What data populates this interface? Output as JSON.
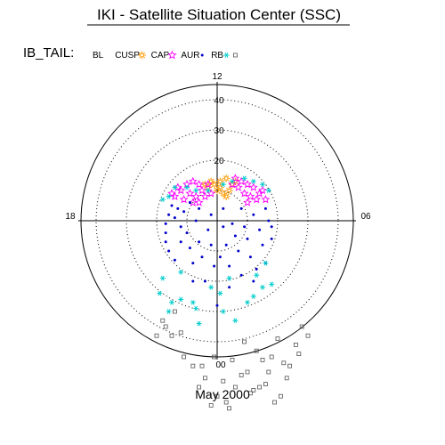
{
  "chart_data": {
    "type": "scatter",
    "title": "IKI - Satellite Situation Center (SSC)",
    "subtitle": "May 2000",
    "legend_heading": "IB_TAIL:",
    "polar": {
      "radial_ticks": [
        20,
        30,
        40
      ],
      "radial_max": 45,
      "angular_labels": [
        {
          "text": "12",
          "position": "top"
        },
        {
          "text": "18",
          "position": "left"
        },
        {
          "text": "06",
          "position": "right"
        },
        {
          "text": "00",
          "position": "bottom"
        }
      ],
      "grid": "dotted circles"
    },
    "legend": [
      {
        "name": "BL",
        "color": "#000000",
        "marker": "none"
      },
      {
        "name": "CUSP",
        "color": "#ff9900",
        "marker": "sun"
      },
      {
        "name": "CAP",
        "color": "#ff00ff",
        "marker": "star"
      },
      {
        "name": "AUR",
        "color": "#0000cc",
        "marker": "dot"
      },
      {
        "name": "RB",
        "color": "#00cccc",
        "marker": "asterisk"
      },
      {
        "name": "",
        "color": "#555555",
        "marker": "square"
      }
    ],
    "series": [
      {
        "name": "CUSP",
        "color": "#ff9900",
        "marker": "sun",
        "points": [
          [
            -1,
            12
          ],
          [
            1,
            13
          ],
          [
            3,
            14
          ],
          [
            5,
            12
          ],
          [
            -3,
            11
          ],
          [
            0,
            10
          ],
          [
            2,
            9
          ],
          [
            -2,
            13
          ],
          [
            4,
            10
          ],
          [
            6,
            13
          ],
          [
            1,
            11
          ],
          [
            -4,
            12
          ],
          [
            3,
            8
          ]
        ]
      },
      {
        "name": "CAP",
        "color": "#ff00ff",
        "marker": "star",
        "points": [
          [
            -12,
            10
          ],
          [
            -10,
            12
          ],
          [
            -8,
            13
          ],
          [
            -6,
            12
          ],
          [
            -14,
            8
          ],
          [
            -9,
            9
          ],
          [
            -5,
            10
          ],
          [
            -11,
            7
          ],
          [
            -7,
            8
          ],
          [
            -13,
            11
          ],
          [
            -4,
            8
          ],
          [
            -8,
            6
          ],
          [
            6,
            14
          ],
          [
            8,
            13
          ],
          [
            10,
            12
          ],
          [
            12,
            11
          ],
          [
            14,
            9
          ],
          [
            9,
            9
          ],
          [
            11,
            8
          ],
          [
            7,
            11
          ],
          [
            13,
            7
          ],
          [
            16,
            7
          ],
          [
            5,
            12
          ],
          [
            10,
            6
          ],
          [
            -3,
            12
          ],
          [
            -2,
            9
          ],
          [
            -6,
            6
          ],
          [
            15,
            10
          ],
          [
            -15,
            9
          ]
        ]
      },
      {
        "name": "AUR",
        "color": "#0000cc",
        "marker": "dot",
        "points": [
          [
            -15,
            5
          ],
          [
            -16,
            2
          ],
          [
            -17,
            -1
          ],
          [
            -17,
            -4
          ],
          [
            -17,
            -7
          ],
          [
            -16,
            -10
          ],
          [
            -14,
            -13
          ],
          [
            -12,
            -7
          ],
          [
            -12,
            -2
          ],
          [
            -11,
            3
          ],
          [
            -10,
            -4
          ],
          [
            -9,
            -9
          ],
          [
            -8,
            -14
          ],
          [
            -7,
            0
          ],
          [
            -6,
            -7
          ],
          [
            -5,
            -12
          ],
          [
            -4,
            -20
          ],
          [
            -3,
            -3
          ],
          [
            -2,
            -8
          ],
          [
            -1,
            -15
          ],
          [
            0,
            -28
          ],
          [
            1,
            -12
          ],
          [
            2,
            -2
          ],
          [
            3,
            -8
          ],
          [
            4,
            -15
          ],
          [
            5,
            -1
          ],
          [
            6,
            -5
          ],
          [
            7,
            -10
          ],
          [
            8,
            -18
          ],
          [
            9,
            -2
          ],
          [
            10,
            -6
          ],
          [
            11,
            -12
          ],
          [
            12,
            -20
          ],
          [
            14,
            -3
          ],
          [
            15,
            -8
          ],
          [
            16,
            -14
          ],
          [
            18,
            -2
          ],
          [
            18,
            -6
          ],
          [
            17,
            0
          ],
          [
            13,
            -16
          ],
          [
            -13,
            4
          ],
          [
            -14,
            1
          ],
          [
            -9,
            6
          ],
          [
            8,
            4
          ],
          [
            12,
            2
          ],
          [
            16,
            4
          ],
          [
            -6,
            4
          ],
          [
            -2,
            2
          ],
          [
            2,
            4
          ],
          [
            4,
            -22
          ],
          [
            -8,
            -20
          ]
        ]
      },
      {
        "name": "RB",
        "color": "#00cccc",
        "marker": "asterisk",
        "points": [
          [
            -16,
            8
          ],
          [
            -14,
            11
          ],
          [
            -10,
            11
          ],
          [
            -7,
            10
          ],
          [
            -3,
            10
          ],
          [
            2,
            12
          ],
          [
            5,
            13
          ],
          [
            9,
            14
          ],
          [
            12,
            13
          ],
          [
            15,
            12
          ],
          [
            17,
            10
          ],
          [
            -18,
            7
          ],
          [
            -18,
            -19
          ],
          [
            -15,
            -27
          ],
          [
            -19,
            -24
          ],
          [
            -12,
            -26
          ],
          [
            -8,
            -27
          ],
          [
            -6,
            -34
          ],
          [
            2,
            -30
          ],
          [
            6,
            -33
          ],
          [
            10,
            -27
          ],
          [
            12,
            -25
          ],
          [
            15,
            -22
          ],
          [
            -2,
            -22
          ],
          [
            1,
            -24
          ],
          [
            -7,
            -29
          ],
          [
            4,
            -19
          ],
          [
            -12,
            -17
          ],
          [
            -16,
            -30
          ],
          [
            13,
            -18
          ],
          [
            16,
            -14
          ],
          [
            18,
            -21
          ]
        ]
      },
      {
        "name": "",
        "color": "#555555",
        "marker": "square",
        "points": [
          [
            -18,
            -33
          ],
          [
            -17,
            -35
          ],
          [
            -15,
            -38
          ],
          [
            -12,
            -37
          ],
          [
            -11,
            -45
          ],
          [
            -8,
            -48
          ],
          [
            -6,
            -55
          ],
          [
            -4,
            -52
          ],
          [
            -2,
            -61
          ],
          [
            0,
            -58
          ],
          [
            2,
            -53
          ],
          [
            3,
            -60
          ],
          [
            5,
            -46
          ],
          [
            8,
            -51
          ],
          [
            10,
            -50
          ],
          [
            12,
            -56
          ],
          [
            13,
            -43
          ],
          [
            15,
            -46
          ],
          [
            17,
            -50
          ],
          [
            18,
            -45
          ],
          [
            20,
            -39
          ],
          [
            22,
            -47
          ],
          [
            24,
            -48
          ],
          [
            26,
            -41
          ],
          [
            28,
            -35
          ],
          [
            30,
            -38
          ],
          [
            -14,
            -30
          ],
          [
            -20,
            -38
          ],
          [
            9,
            -40
          ],
          [
            11,
            -57
          ],
          [
            14,
            -55
          ],
          [
            16,
            -54
          ],
          [
            19,
            -60
          ],
          [
            21,
            -58
          ],
          [
            -5,
            -48
          ],
          [
            -1,
            -45
          ],
          [
            6,
            -55
          ],
          [
            4,
            -62
          ],
          [
            23,
            -52
          ],
          [
            27,
            -44
          ]
        ]
      }
    ]
  }
}
